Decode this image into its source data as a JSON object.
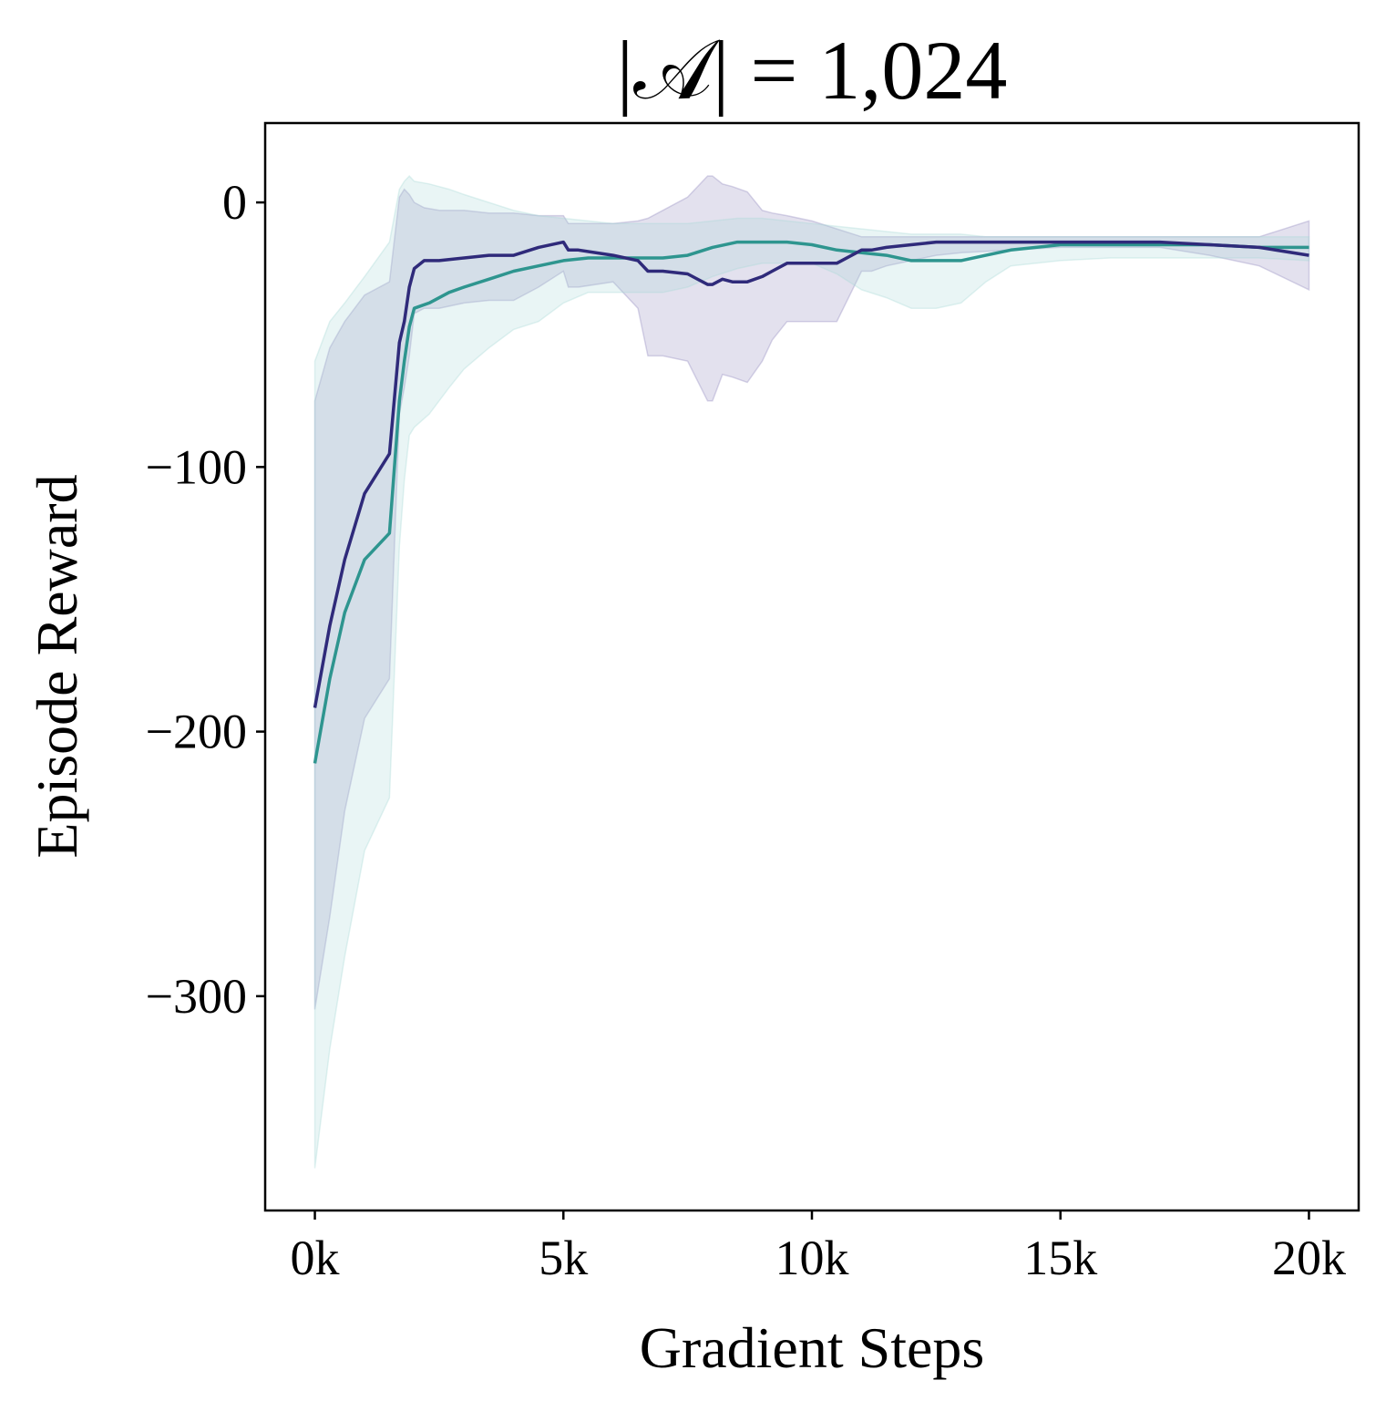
{
  "chart_data": {
    "type": "line",
    "title": "|𝒜| = 1,024",
    "xlabel": "Gradient Steps",
    "ylabel": "Episode Reward",
    "xlim": [
      -1000,
      21000
    ],
    "ylim": [
      -381,
      30
    ],
    "xticks": [
      {
        "value": 0,
        "label": "0k"
      },
      {
        "value": 5000,
        "label": "5k"
      },
      {
        "value": 10000,
        "label": "10k"
      },
      {
        "value": 15000,
        "label": "15k"
      },
      {
        "value": 20000,
        "label": "20k"
      }
    ],
    "yticks": [
      {
        "value": 0,
        "label": "0"
      },
      {
        "value": -100,
        "label": "−100"
      },
      {
        "value": -200,
        "label": "−200"
      },
      {
        "value": -300,
        "label": "−300"
      }
    ],
    "grid": false,
    "legend": "none",
    "series": [
      {
        "color": "#2f2a7a",
        "band_color": "#8f86bd",
        "x": [
          0,
          300,
          600,
          1000,
          1500,
          1700,
          1800,
          1900,
          2000,
          2200,
          2500,
          3000,
          3500,
          4000,
          4500,
          5000,
          5100,
          5300,
          6000,
          6500,
          6700,
          7000,
          7500,
          7900,
          8000,
          8200,
          8400,
          8700,
          9000,
          9200,
          9500,
          10000,
          10500,
          11000,
          11200,
          11500,
          12000,
          12500,
          13000,
          14000,
          15000,
          16000,
          17000,
          18000,
          19000,
          20000
        ],
        "y": [
          -191,
          -160,
          -135,
          -110,
          -95,
          -53,
          -45,
          -32,
          -25,
          -22,
          -22,
          -21,
          -20,
          -20,
          -17,
          -15,
          -18,
          -18,
          -20,
          -22,
          -26,
          -26,
          -27,
          -31,
          -31,
          -29,
          -30,
          -30,
          -28,
          -26,
          -23,
          -23,
          -23,
          -18,
          -18,
          -17,
          -16,
          -15,
          -15,
          -15,
          -15,
          -15,
          -15,
          -16,
          -17,
          -20
        ],
        "upper": [
          -75,
          -55,
          -45,
          -35,
          -30,
          2,
          5,
          3,
          0,
          -2,
          -3,
          -3,
          -4,
          -4,
          -5,
          -5,
          -8,
          -8,
          -8,
          -7,
          -6,
          -3,
          2,
          10,
          10,
          7,
          6,
          4,
          -3,
          -4,
          -5,
          -7,
          -10,
          -13,
          -13,
          -13,
          -13,
          -13,
          -13,
          -13,
          -13,
          -13,
          -13,
          -13,
          -13,
          -7
        ],
        "lower": [
          -305,
          -270,
          -230,
          -195,
          -180,
          -80,
          -70,
          -58,
          -42,
          -40,
          -40,
          -38,
          -37,
          -37,
          -32,
          -26,
          -32,
          -32,
          -30,
          -40,
          -58,
          -58,
          -60,
          -75,
          -75,
          -65,
          -66,
          -68,
          -60,
          -52,
          -45,
          -45,
          -45,
          -26,
          -26,
          -24,
          -22,
          -20,
          -19,
          -18,
          -17,
          -17,
          -17,
          -20,
          -24,
          -33
        ]
      },
      {
        "color": "#2e958f",
        "band_color": "#a9d9d6",
        "x": [
          0,
          300,
          600,
          1000,
          1500,
          1700,
          1800,
          1900,
          2000,
          2300,
          2700,
          3000,
          3500,
          4000,
          4500,
          5000,
          5500,
          6000,
          7000,
          7500,
          8000,
          8500,
          9000,
          9500,
          10000,
          10500,
          11000,
          11500,
          12000,
          12500,
          13000,
          13500,
          14000,
          15000,
          16000,
          17000,
          18000,
          19000,
          20000
        ],
        "y": [
          -212,
          -180,
          -155,
          -135,
          -125,
          -75,
          -60,
          -47,
          -40,
          -38,
          -34,
          -32,
          -29,
          -26,
          -24,
          -22,
          -21,
          -21,
          -21,
          -20,
          -17,
          -15,
          -15,
          -15,
          -16,
          -18,
          -19,
          -20,
          -22,
          -22,
          -22,
          -20,
          -18,
          -16,
          -16,
          -16,
          -16,
          -17,
          -17
        ],
        "upper": [
          -60,
          -45,
          -38,
          -28,
          -15,
          5,
          8,
          10,
          8,
          7,
          5,
          3,
          0,
          -3,
          -5,
          -6,
          -7,
          -8,
          -8,
          -8,
          -7,
          -6,
          -6,
          -7,
          -8,
          -9,
          -10,
          -11,
          -12,
          -12,
          -12,
          -13,
          -13,
          -13,
          -13,
          -13,
          -13,
          -13,
          -13
        ],
        "lower": [
          -365,
          -320,
          -285,
          -245,
          -225,
          -130,
          -105,
          -88,
          -85,
          -80,
          -70,
          -63,
          -55,
          -48,
          -45,
          -38,
          -34,
          -34,
          -34,
          -32,
          -28,
          -25,
          -23,
          -23,
          -23,
          -27,
          -33,
          -36,
          -40,
          -40,
          -38,
          -30,
          -24,
          -22,
          -21,
          -21,
          -21,
          -21,
          -22
        ]
      }
    ]
  }
}
